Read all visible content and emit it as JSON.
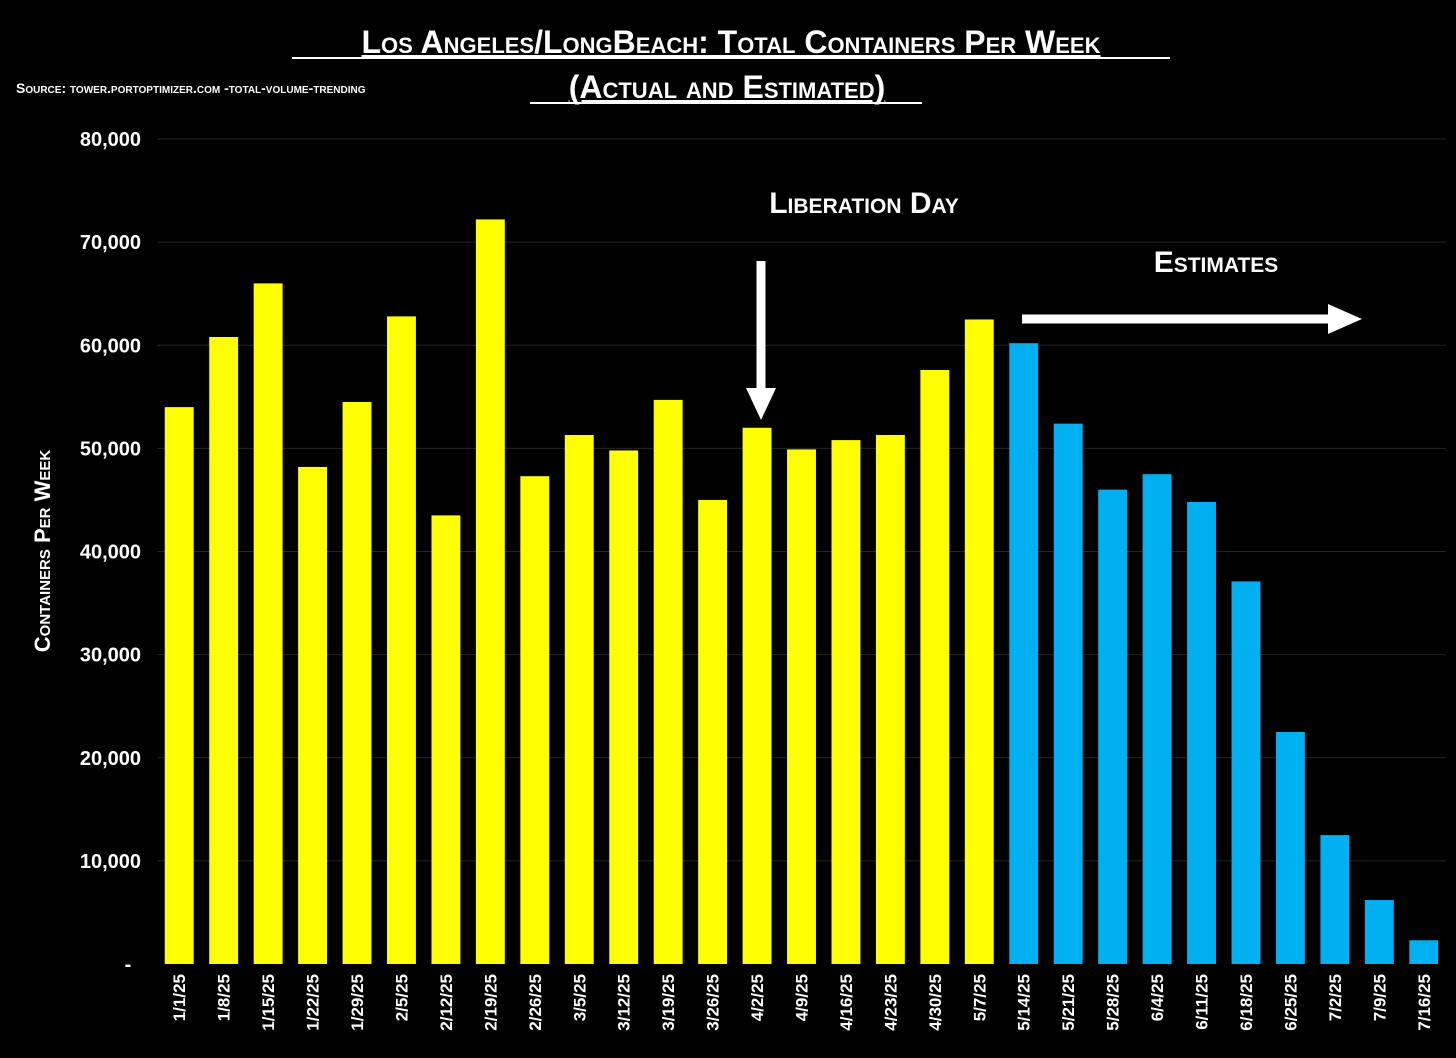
{
  "chart_data": {
    "type": "bar",
    "title_line1": "Los Angeles/LongBeach: Total Containers Per Week",
    "title_line2": "(Actual and Estimated)",
    "source": "Source: tower.portoptimizer.com -total-volume-trending",
    "ylabel": "Containers Per Week",
    "xlabel": "",
    "ylim": [
      0,
      80000
    ],
    "y_ticks": [
      {
        "value": 0,
        "label": "-"
      },
      {
        "value": 10000,
        "label": "10,000"
      },
      {
        "value": 20000,
        "label": "20,000"
      },
      {
        "value": 30000,
        "label": "30,000"
      },
      {
        "value": 40000,
        "label": "40,000"
      },
      {
        "value": 50000,
        "label": "50,000"
      },
      {
        "value": 60000,
        "label": "60,000"
      },
      {
        "value": 70000,
        "label": "70,000"
      },
      {
        "value": 80000,
        "label": "80,000"
      }
    ],
    "grid": true,
    "categories": [
      "1/1/25",
      "1/8/25",
      "1/15/25",
      "1/22/25",
      "1/29/25",
      "2/5/25",
      "2/12/25",
      "2/19/25",
      "2/26/25",
      "3/5/25",
      "3/12/25",
      "3/19/25",
      "3/26/25",
      "4/2/25",
      "4/9/25",
      "4/16/25",
      "4/23/25",
      "4/30/25",
      "5/7/25",
      "5/14/25",
      "5/21/25",
      "5/28/25",
      "6/4/25",
      "6/11/25",
      "6/18/25",
      "6/25/25",
      "7/2/25",
      "7/9/25",
      "7/16/25"
    ],
    "series": [
      {
        "name": "Actual",
        "color": "#FFFF00",
        "values": [
          54000,
          60800,
          66000,
          48200,
          54500,
          62800,
          43500,
          72200,
          47300,
          51300,
          49800,
          54700,
          45000,
          52000,
          49900,
          50800,
          51300,
          57600,
          62500,
          null,
          null,
          null,
          null,
          null,
          null,
          null,
          null,
          null,
          null
        ]
      },
      {
        "name": "Estimated",
        "color": "#00B0F0",
        "values": [
          null,
          null,
          null,
          null,
          null,
          null,
          null,
          null,
          null,
          null,
          null,
          null,
          null,
          null,
          null,
          null,
          null,
          null,
          null,
          60200,
          52400,
          46000,
          47500,
          44800,
          37100,
          22500,
          12500,
          6200,
          2300
        ]
      }
    ],
    "annotations": {
      "liberation_day": "Liberation Day",
      "estimates": "Estimates"
    }
  }
}
